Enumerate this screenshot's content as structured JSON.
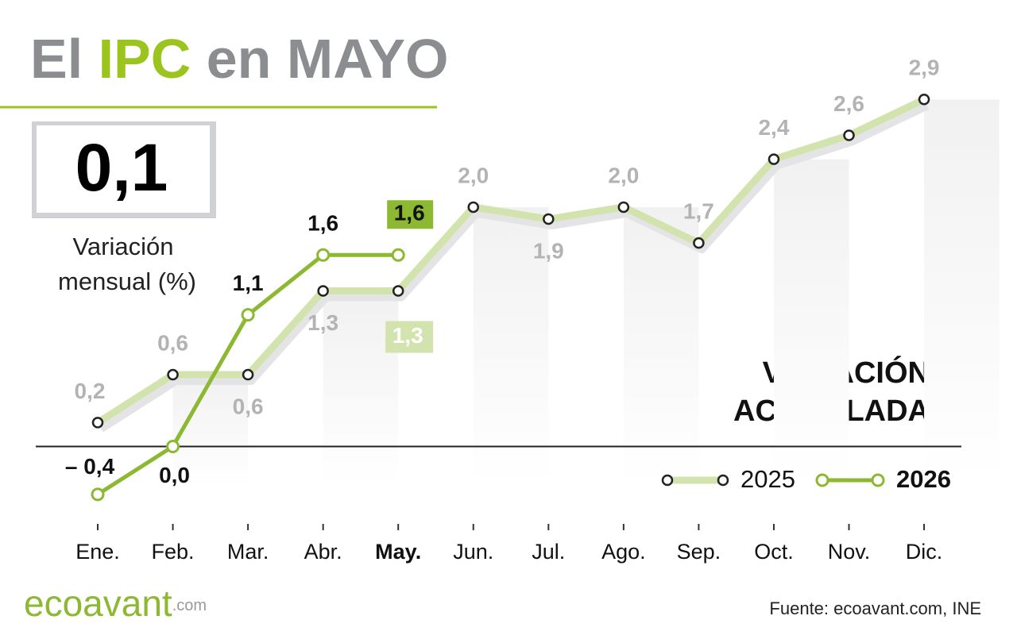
{
  "header": {
    "title_parts": [
      "El ",
      "IPC",
      " en MAYO"
    ]
  },
  "highlight": {
    "value": "0,1",
    "caption": [
      "Variación",
      "mensual (%)"
    ]
  },
  "chart_data": {
    "type": "line",
    "label": [
      "VARIACIÓN",
      "ACUMULADA"
    ],
    "categories": [
      "Ene.",
      "Feb.",
      "Mar.",
      "Abr.",
      "May.",
      "Jun.",
      "Jul.",
      "Ago.",
      "Sep.",
      "Oct.",
      "Nov.",
      "Dic."
    ],
    "highlight_category": "May.",
    "series": [
      {
        "name": "2025",
        "color": "#d3e3ad",
        "values": [
          0.2,
          0.6,
          0.6,
          1.3,
          1.3,
          2.0,
          1.9,
          2.0,
          1.7,
          2.4,
          2.6,
          2.9
        ],
        "value_labels": [
          "0,2",
          "0,6",
          "0,6",
          "1,3",
          "1,3",
          "2,0",
          "1,9",
          "2,0",
          "1,7",
          "2,4",
          "2,6",
          "2,9"
        ]
      },
      {
        "name": "2026",
        "color": "#8cb832",
        "values": [
          -0.4,
          0.0,
          1.1,
          1.6,
          1.6,
          null,
          null,
          null,
          null,
          null,
          null,
          null
        ],
        "value_labels": [
          "– 0,4",
          "0,0",
          "1,1",
          "1,6",
          "1,6",
          null,
          null,
          null,
          null,
          null,
          null,
          null
        ]
      }
    ],
    "ylim": [
      -0.6,
      3.2
    ]
  },
  "footer": {
    "logo": [
      "eco",
      "avant",
      ".com"
    ],
    "source": "Fuente: ecoavant.com, INE"
  }
}
